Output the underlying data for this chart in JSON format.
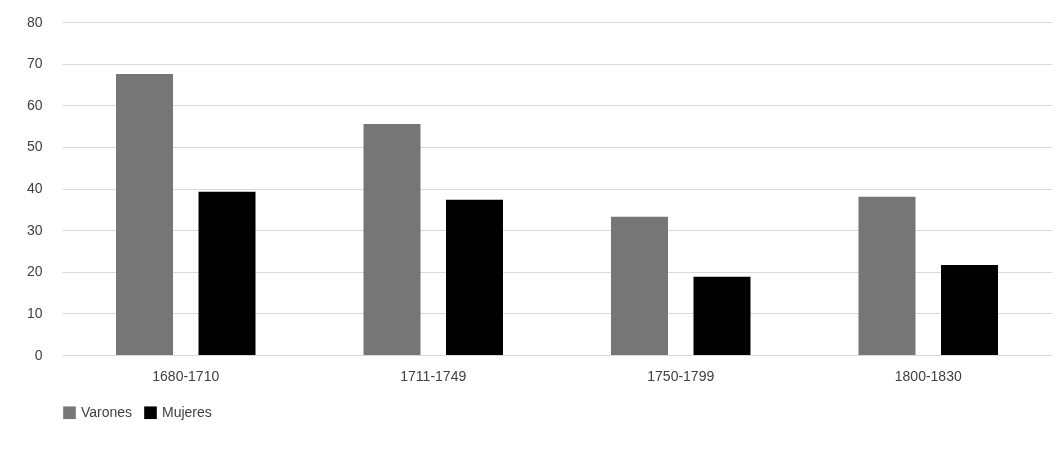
{
  "chart_data": {
    "type": "bar",
    "categories": [
      "1680-1710",
      "1711-1749",
      "1750-1799",
      "1800-1830"
    ],
    "series": [
      {
        "name": "Varones",
        "color": "#767676",
        "values": [
          67.5,
          55.5,
          33.2,
          38
        ]
      },
      {
        "name": "Mujeres",
        "color": "#000000",
        "values": [
          39.2,
          37.3,
          18.8,
          21.6
        ]
      }
    ],
    "ylim": [
      0,
      80
    ],
    "yticks": [
      0,
      10,
      20,
      30,
      40,
      50,
      60,
      70,
      80
    ],
    "grid": "y",
    "legend": "bottom"
  }
}
